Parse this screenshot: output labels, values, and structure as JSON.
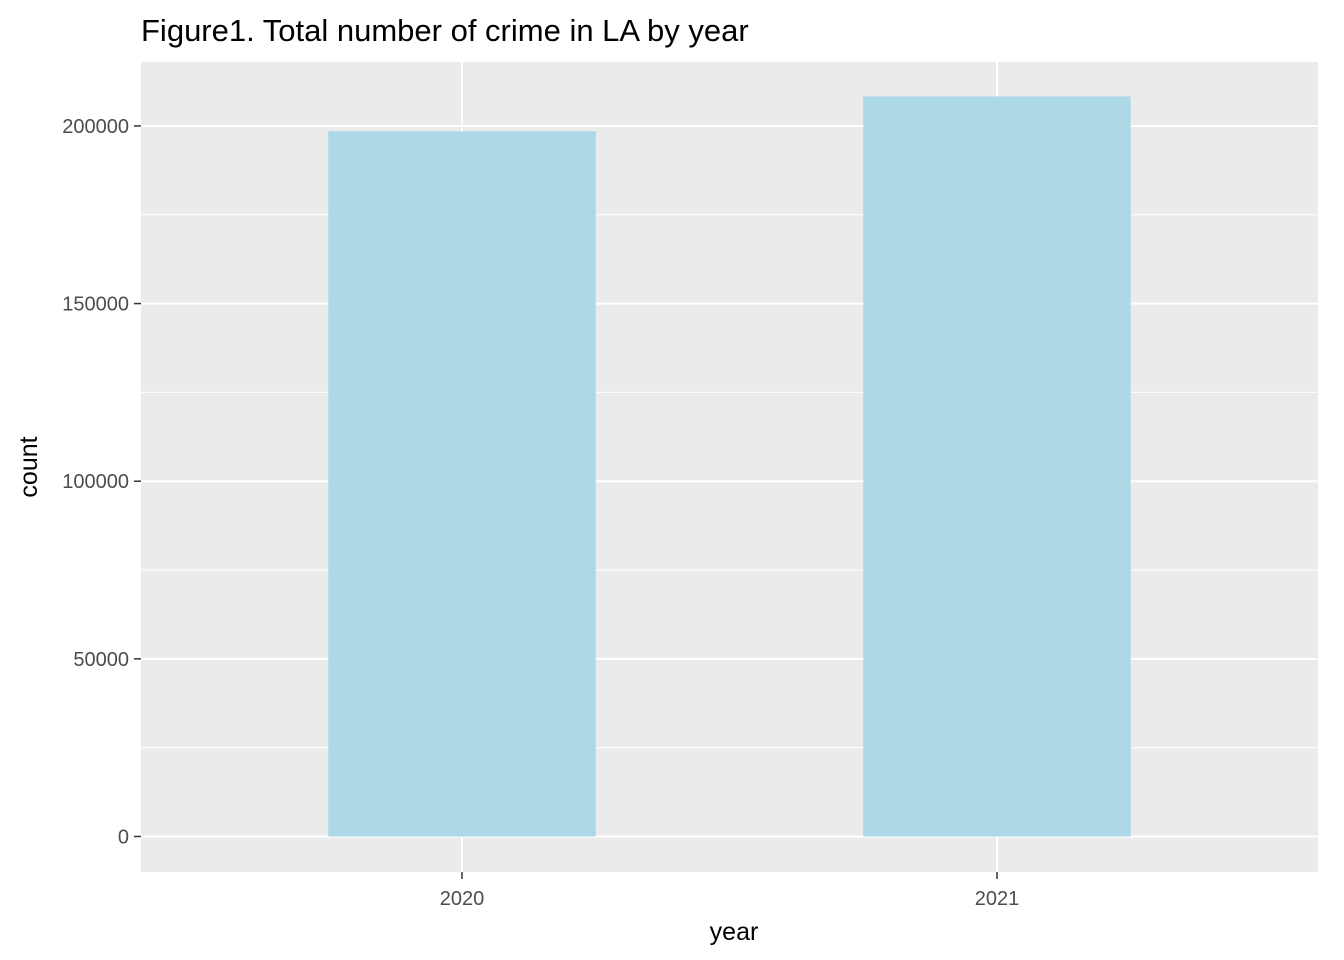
{
  "chart_data": {
    "type": "bar",
    "title": "Figure1. Total number of crime in LA by year",
    "xlabel": "year",
    "ylabel": "count",
    "categories": [
      "2020",
      "2021"
    ],
    "values": [
      198500,
      208300
    ],
    "ylim": [
      -10000,
      218000
    ],
    "yticks": [
      0,
      50000,
      100000,
      150000,
      200000
    ],
    "ytick_labels": [
      "0",
      "50000",
      "100000",
      "150000",
      "200000"
    ],
    "grid": true,
    "legend": "none",
    "colors": {
      "bar": "#ADD8E6",
      "panel_background": "#EBEBEB",
      "gridline": "#FFFFFF",
      "tick_text": "#4D4D4D",
      "tick_mark": "#333333"
    }
  }
}
